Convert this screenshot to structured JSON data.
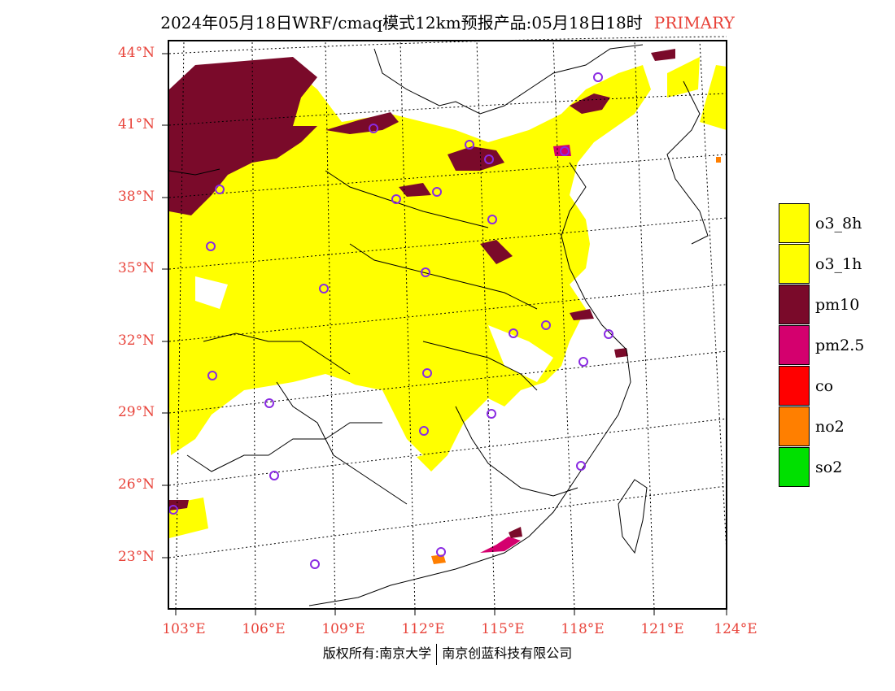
{
  "title": {
    "main": "2024年05月18日WRF/cmaq模式12km预报产品:05月18日18时",
    "tag": "PRIMARY"
  },
  "axes": {
    "y_labels": [
      "44°N",
      "41°N",
      "38°N",
      "35°N",
      "32°N",
      "29°N",
      "26°N",
      "23°N"
    ],
    "x_labels": [
      "103°E",
      "106°E",
      "109°E",
      "112°E",
      "115°E",
      "118°E",
      "121°E",
      "124°E"
    ]
  },
  "legend": [
    {
      "label": "o3_8h",
      "color": "#ffff00"
    },
    {
      "label": "o3_1h",
      "color": "#ffff00"
    },
    {
      "label": "pm10",
      "color": "#7a0a2a"
    },
    {
      "label": "pm2.5",
      "color": "#d4006e"
    },
    {
      "label": "co",
      "color": "#ff0000"
    },
    {
      "label": "no2",
      "color": "#ff7f00"
    },
    {
      "label": "so2",
      "color": "#00e000"
    }
  ],
  "footer": {
    "left": "版权所有:南京大学",
    "right": "南京创蓝科技有限公司"
  }
}
